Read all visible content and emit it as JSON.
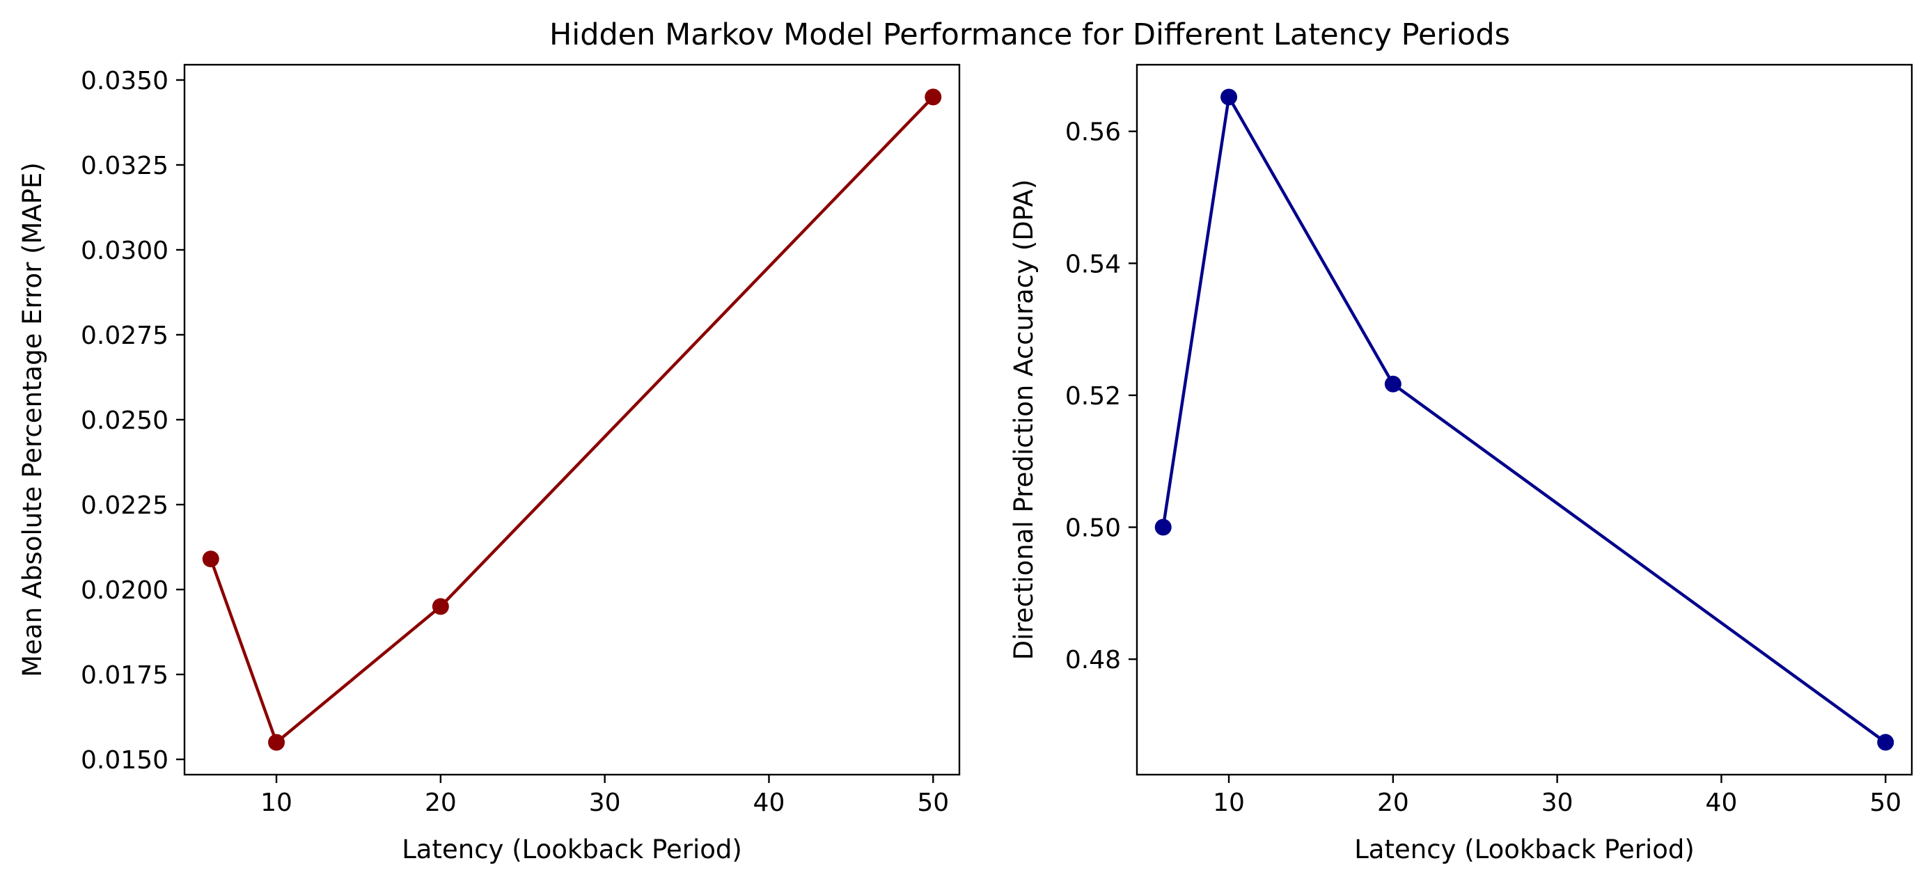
{
  "title": "Hidden Markov Model Performance for Different Latency Periods",
  "chart_data": [
    {
      "type": "line",
      "title": "",
      "xlabel": "Latency (Lookback Period)",
      "ylabel": "Mean Absolute Percentage Error (MAPE)",
      "x": [
        6,
        10,
        20,
        50
      ],
      "series": [
        {
          "values": [
            0.0209,
            0.0155,
            0.0195,
            0.0345
          ],
          "color": "#8b0000",
          "marker": "circle"
        }
      ],
      "xlim": [
        4.4,
        51.6
      ],
      "ylim": [
        0.01455,
        0.03545
      ],
      "xticks": [
        10,
        20,
        30,
        40,
        50
      ],
      "xtick_labels": [
        "10",
        "20",
        "30",
        "40",
        "50"
      ],
      "yticks": [
        0.015,
        0.0175,
        0.02,
        0.0225,
        0.025,
        0.0275,
        0.03,
        0.0325,
        0.035
      ],
      "ytick_labels": [
        "0.0150",
        "0.0175",
        "0.0200",
        "0.0225",
        "0.0250",
        "0.0275",
        "0.0300",
        "0.0325",
        "0.0350"
      ],
      "grid": false,
      "legend": "none"
    },
    {
      "type": "line",
      "title": "",
      "xlabel": "Latency (Lookback Period)",
      "ylabel": "Directional Prediction Accuracy (DPA)",
      "x": [
        6,
        10,
        20,
        50
      ],
      "series": [
        {
          "values": [
            0.5,
            0.5652,
            0.5217,
            0.4674
          ],
          "color": "#00008b",
          "marker": "circle"
        }
      ],
      "xlim": [
        4.4,
        51.6
      ],
      "ylim": [
        0.4625,
        0.5701
      ],
      "xticks": [
        10,
        20,
        30,
        40,
        50
      ],
      "xtick_labels": [
        "10",
        "20",
        "30",
        "40",
        "50"
      ],
      "yticks": [
        0.48,
        0.5,
        0.52,
        0.54,
        0.56
      ],
      "ytick_labels": [
        "0.48",
        "0.50",
        "0.52",
        "0.54",
        "0.56"
      ],
      "grid": false,
      "legend": "none"
    }
  ]
}
